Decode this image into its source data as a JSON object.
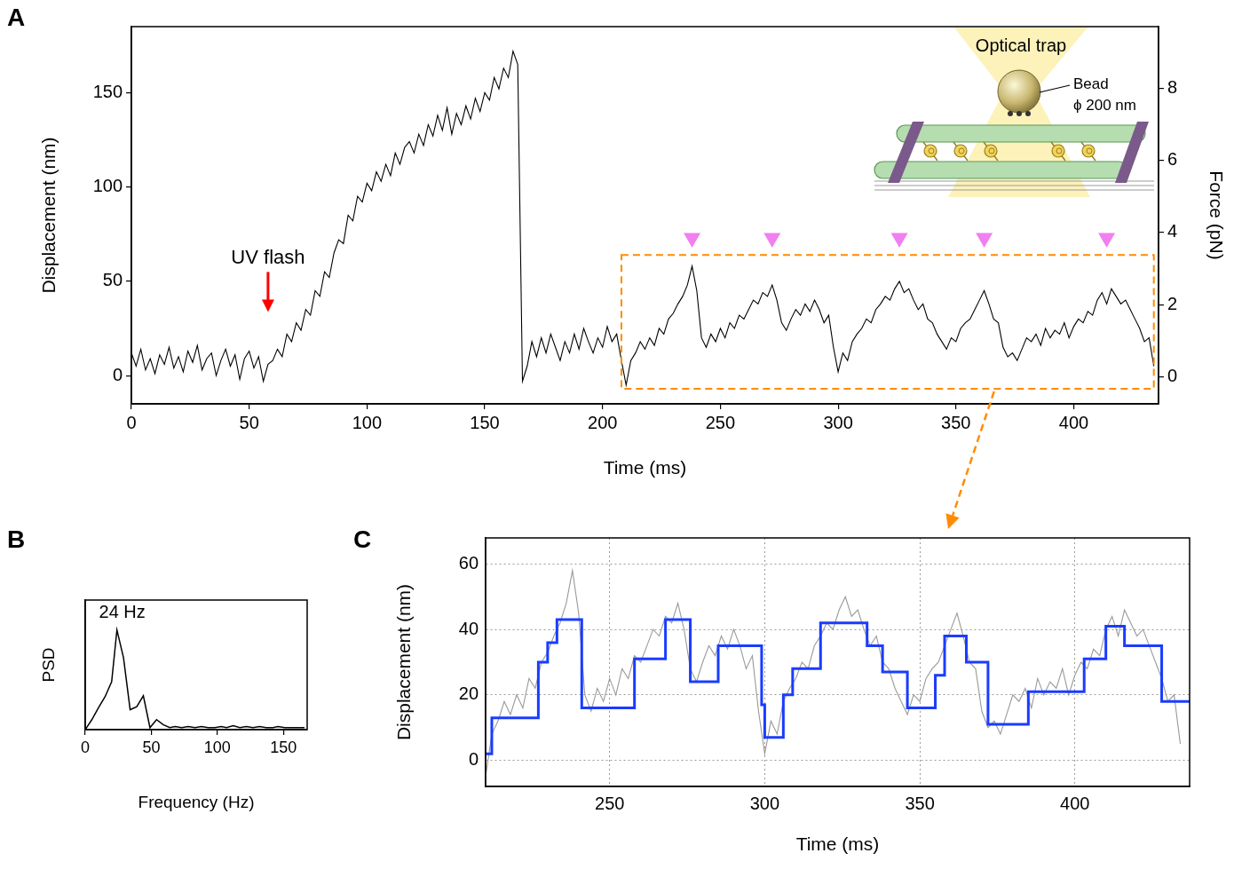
{
  "chart_data": [
    {
      "panel": "A",
      "type": "line",
      "xlabel": "Time (ms)",
      "ylabel": "Displacement (nm)",
      "y2label": "Force (pN)",
      "xlim": [
        0,
        436
      ],
      "xticks": [
        0,
        50,
        100,
        150,
        200,
        250,
        300,
        350,
        400
      ],
      "ylim": [
        -15,
        185
      ],
      "yticks": [
        0,
        50,
        100,
        150
      ],
      "y2lim": [
        -0.75,
        9.7
      ],
      "y2ticks": [
        0,
        2,
        4,
        6,
        8
      ],
      "grid": false,
      "series": [
        {
          "color": "#000000",
          "x": [
            0,
            2,
            4,
            6,
            8,
            10,
            12,
            14,
            16,
            18,
            20,
            22,
            24,
            26,
            28,
            30,
            32,
            34,
            36,
            38,
            40,
            42,
            44,
            46,
            48,
            50,
            52,
            54,
            56,
            58,
            60,
            62,
            64,
            66,
            68,
            70,
            72,
            74,
            76,
            78,
            80,
            82,
            84,
            86,
            88,
            90,
            92,
            94,
            96,
            98,
            100,
            102,
            104,
            106,
            108,
            110,
            112,
            114,
            116,
            118,
            120,
            122,
            124,
            126,
            128,
            130,
            132,
            134,
            136,
            138,
            140,
            142,
            144,
            146,
            148,
            150,
            152,
            154,
            156,
            158,
            160,
            162,
            164,
            166,
            168,
            170,
            172,
            174,
            176,
            178,
            180,
            182,
            184,
            186,
            188,
            190,
            192,
            194,
            196,
            198,
            200,
            202,
            204,
            206,
            208,
            210,
            212,
            214,
            216,
            218,
            220,
            222,
            224,
            226,
            228,
            230,
            232,
            234,
            236,
            238,
            240,
            242,
            244,
            246,
            248,
            250,
            252,
            254,
            256,
            258,
            260,
            262,
            264,
            266,
            268,
            270,
            272,
            274,
            276,
            278,
            280,
            282,
            284,
            286,
            288,
            290,
            292,
            294,
            296,
            298,
            300,
            302,
            304,
            306,
            308,
            310,
            312,
            314,
            316,
            318,
            320,
            322,
            324,
            326,
            328,
            330,
            332,
            334,
            336,
            338,
            340,
            342,
            344,
            346,
            348,
            350,
            352,
            354,
            356,
            358,
            360,
            362,
            364,
            366,
            368,
            370,
            372,
            374,
            376,
            378,
            380,
            382,
            384,
            386,
            388,
            390,
            392,
            394,
            396,
            398,
            400,
            402,
            404,
            406,
            408,
            410,
            412,
            414,
            416,
            418,
            420,
            422,
            424,
            426,
            428,
            430,
            432,
            434
          ],
          "values": [
            12,
            5,
            14,
            3,
            9,
            1,
            11,
            6,
            15,
            4,
            10,
            2,
            13,
            7,
            16,
            3,
            9,
            12,
            0,
            8,
            14,
            5,
            11,
            -2,
            9,
            13,
            4,
            10,
            -3,
            6,
            8,
            14,
            10,
            22,
            18,
            28,
            24,
            35,
            32,
            45,
            42,
            55,
            52,
            65,
            72,
            70,
            85,
            82,
            95,
            92,
            102,
            98,
            108,
            103,
            112,
            106,
            118,
            112,
            121,
            124,
            118,
            128,
            122,
            133,
            127,
            138,
            130,
            142,
            128,
            139,
            133,
            143,
            136,
            147,
            140,
            150,
            146,
            158,
            152,
            163,
            158,
            172,
            165,
            -3,
            5,
            18,
            10,
            20,
            12,
            22,
            15,
            8,
            18,
            12,
            22,
            14,
            25,
            18,
            12,
            20,
            15,
            26,
            18,
            22,
            8,
            -5,
            8,
            12,
            18,
            14,
            20,
            16,
            25,
            22,
            30,
            33,
            38,
            42,
            48,
            58,
            45,
            20,
            15,
            22,
            18,
            25,
            20,
            28,
            25,
            32,
            30,
            35,
            40,
            38,
            44,
            42,
            48,
            40,
            28,
            24,
            30,
            35,
            32,
            38,
            34,
            40,
            35,
            28,
            32,
            15,
            2,
            12,
            8,
            18,
            22,
            25,
            30,
            28,
            35,
            38,
            42,
            40,
            46,
            50,
            44,
            46,
            40,
            35,
            38,
            30,
            28,
            22,
            18,
            14,
            20,
            18,
            25,
            28,
            30,
            35,
            40,
            45,
            38,
            30,
            28,
            15,
            10,
            12,
            8,
            14,
            20,
            18,
            22,
            16,
            25,
            20,
            24,
            22,
            28,
            20,
            26,
            30,
            28,
            34,
            32,
            40,
            44,
            38,
            46,
            42,
            38,
            40,
            35,
            30,
            25,
            18,
            20,
            5
          ]
        }
      ],
      "markers": {
        "x": [
          238,
          272,
          326,
          362,
          414
        ],
        "y": [
          73,
          73,
          73,
          73,
          73
        ],
        "color": "#f080f0",
        "marker": "triangle-down"
      },
      "annotations": [
        {
          "text": "UV flash",
          "x": 58,
          "y": 62,
          "color": "#ff0000"
        }
      ],
      "box": {
        "x": [
          208,
          434
        ],
        "y": [
          -7,
          64
        ],
        "color": "#ff8c00",
        "line_style": "dashed"
      },
      "inset": {
        "title": "Optical trap",
        "labels": [
          "Bead",
          "ϕ 200 nm"
        ]
      }
    },
    {
      "panel": "B",
      "type": "line",
      "xlabel": "Frequency (Hz)",
      "ylabel": "PSD",
      "xlim": [
        0,
        168
      ],
      "xticks": [
        0,
        50,
        100,
        150
      ],
      "ylim": [
        0,
        1.3
      ],
      "yticks": [],
      "tick_labels": "x",
      "grid": false,
      "series": [
        {
          "color": "#000000",
          "x": [
            0,
            5,
            10,
            15,
            20,
            24,
            29,
            34,
            39,
            44,
            49,
            54,
            59,
            64,
            68,
            73,
            78,
            83,
            88,
            93,
            98,
            103,
            107,
            112,
            117,
            122,
            127,
            132,
            137,
            142,
            146,
            151,
            156,
            161,
            166
          ],
          "values": [
            0,
            0.1,
            0.22,
            0.33,
            0.48,
            1.0,
            0.72,
            0.2,
            0.23,
            0.34,
            0.02,
            0.1,
            0.05,
            0.02,
            0.03,
            0.02,
            0.03,
            0.02,
            0.03,
            0.02,
            0.02,
            0.03,
            0.02,
            0.04,
            0.02,
            0.03,
            0.02,
            0.03,
            0.02,
            0.02,
            0.03,
            0.02,
            0.02,
            0.02,
            0.02
          ]
        }
      ],
      "annotations": [
        {
          "text": "24 Hz",
          "x": 28,
          "y": 1.17
        }
      ]
    },
    {
      "panel": "C",
      "type": "line",
      "xlabel": "Time (ms)",
      "ylabel": "Displacement (nm)",
      "xlim": [
        210,
        437
      ],
      "xticks": [
        250,
        300,
        350,
        400
      ],
      "ylim": [
        -8,
        68
      ],
      "yticks": [
        0,
        20,
        40,
        60
      ],
      "grid": true,
      "series": [
        {
          "color": "#999999",
          "x": [
            210,
            212,
            214,
            216,
            218,
            220,
            222,
            224,
            226,
            228,
            230,
            232,
            234,
            236,
            238,
            240,
            242,
            244,
            246,
            248,
            250,
            252,
            254,
            256,
            258,
            260,
            262,
            264,
            266,
            268,
            270,
            272,
            274,
            276,
            278,
            280,
            282,
            284,
            286,
            288,
            290,
            292,
            294,
            296,
            298,
            300,
            302,
            304,
            306,
            308,
            310,
            312,
            314,
            316,
            318,
            320,
            322,
            324,
            326,
            328,
            330,
            332,
            334,
            336,
            338,
            340,
            342,
            344,
            346,
            348,
            350,
            352,
            354,
            356,
            358,
            360,
            362,
            364,
            366,
            368,
            370,
            372,
            374,
            376,
            378,
            380,
            382,
            384,
            386,
            388,
            390,
            392,
            394,
            396,
            398,
            400,
            402,
            404,
            406,
            408,
            410,
            412,
            414,
            416,
            418,
            420,
            422,
            424,
            426,
            428,
            430,
            432,
            434
          ],
          "values": [
            -5,
            8,
            12,
            18,
            14,
            20,
            16,
            25,
            22,
            30,
            33,
            38,
            42,
            48,
            58,
            45,
            20,
            15,
            22,
            18,
            25,
            20,
            28,
            25,
            32,
            30,
            35,
            40,
            38,
            44,
            42,
            48,
            40,
            28,
            24,
            30,
            35,
            32,
            38,
            34,
            40,
            35,
            28,
            32,
            15,
            2,
            12,
            8,
            18,
            22,
            25,
            30,
            28,
            35,
            38,
            42,
            40,
            46,
            50,
            44,
            46,
            40,
            35,
            38,
            30,
            28,
            22,
            18,
            14,
            20,
            18,
            25,
            28,
            30,
            35,
            40,
            45,
            38,
            30,
            28,
            15,
            10,
            12,
            8,
            14,
            20,
            18,
            22,
            16,
            25,
            20,
            24,
            22,
            28,
            20,
            26,
            30,
            28,
            34,
            32,
            40,
            44,
            38,
            46,
            42,
            38,
            40,
            35,
            30,
            25,
            18,
            20,
            5
          ]
        },
        {
          "color": "#1a3cff",
          "line_style": "steps",
          "x": [
            210,
            212,
            227,
            230,
            233,
            241,
            258,
            268,
            276,
            285,
            299,
            300,
            306,
            309,
            318,
            333,
            338,
            346,
            355,
            358,
            365,
            372,
            385,
            403,
            410,
            416,
            428,
            437
          ],
          "values": [
            2,
            13,
            30,
            36,
            43,
            16,
            31,
            43,
            24,
            35,
            17,
            7,
            20,
            28,
            42,
            35,
            27,
            16,
            26,
            38,
            30,
            11,
            21,
            31,
            41,
            35,
            18,
            18
          ]
        }
      ]
    }
  ]
}
